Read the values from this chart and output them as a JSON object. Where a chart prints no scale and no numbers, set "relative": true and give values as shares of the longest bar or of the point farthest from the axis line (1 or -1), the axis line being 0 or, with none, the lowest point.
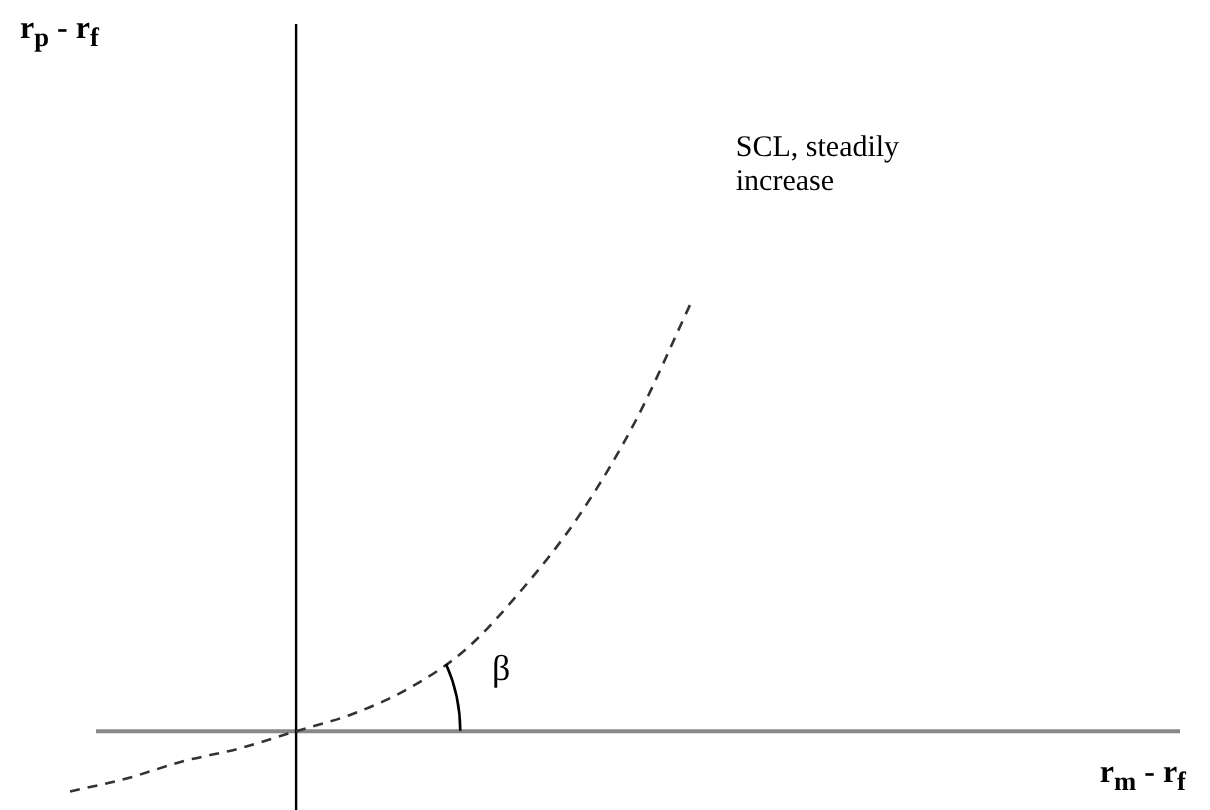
{
  "chart_data": {
    "type": "line",
    "relative": true,
    "xlabel": "r$_{m}$ - r$_{f}$",
    "annotations": [
      "SCL, steadily increase",
      "β",
      "r$_{p}$ - r$_{f}$"
    ],
    "categories": [
      null,
      null,
      null,
      null,
      null,
      null,
      null,
      null,
      null,
      null,
      null,
      null,
      null,
      null,
      null,
      null,
      null,
      null,
      null,
      null
    ],
    "series": [
      {
        "color": "#333333",
        "values": [
          -0.14,
          -0.11,
          -0.07,
          -0.04,
          0,
          0.04,
          0.1,
          0.19,
          0.33,
          0.5,
          0.72,
          1,
          null,
          null,
          null,
          null,
          null,
          null,
          null,
          null
        ]
      }
    ],
    "line_style": "dashed",
    "marker": "none",
    "legend": false
  }
}
